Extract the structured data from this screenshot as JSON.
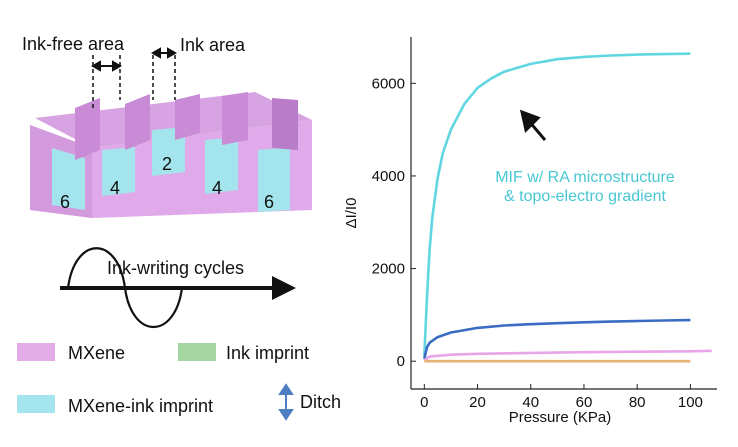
{
  "schematic": {
    "ink_free_area_label": "Ink-free area",
    "ink_area_label": "Ink area",
    "cycle_numbers": [
      "6",
      "4",
      "2",
      "4",
      "6"
    ],
    "cycles_label": "Ink-writing cycles"
  },
  "legend": {
    "mxene_label": "MXene",
    "ink_imprint_label": "Ink imprint",
    "mxene_ink_label": "MXene-ink imprint",
    "ditch_label": "Ditch",
    "colors": {
      "mxene": "#e3aee8",
      "ink_imprint": "#a6d6a2",
      "mxene_ink": "#a4e4ec",
      "ditch_arrow": "#4d7fc2"
    }
  },
  "chart_data": {
    "type": "line",
    "xlabel": "Pressure (KPa)",
    "ylabel": "ΔI/I0",
    "xlim": [
      -5,
      110
    ],
    "ylim": [
      -600,
      7000
    ],
    "xticks": [
      0,
      20,
      40,
      60,
      80,
      100
    ],
    "yticks": [
      0,
      2000,
      4000,
      6000
    ],
    "grid": false,
    "annotation": [
      "MIF w/ RA microstructure",
      "& topo-electro gradient"
    ],
    "series": [
      {
        "color": "#5fd6e0",
        "x": [
          0,
          1,
          2,
          3,
          5,
          7,
          10,
          15,
          20,
          25,
          30,
          40,
          50,
          60,
          70,
          80,
          90,
          100
        ],
        "y": [
          100,
          1400,
          2400,
          3100,
          3950,
          4500,
          5000,
          5550,
          5900,
          6100,
          6250,
          6420,
          6520,
          6570,
          6600,
          6620,
          6630,
          6640
        ]
      },
      {
        "color": "#3a6cc4",
        "x": [
          0,
          1,
          2,
          5,
          10,
          20,
          30,
          40,
          50,
          60,
          70,
          80,
          90,
          100
        ],
        "y": [
          50,
          300,
          400,
          520,
          620,
          720,
          770,
          800,
          820,
          840,
          855,
          868,
          878,
          888
        ]
      },
      {
        "color": "#e8a6e8",
        "x": [
          0,
          2,
          10,
          20,
          40,
          60,
          80,
          100,
          108
        ],
        "y": [
          20,
          100,
          140,
          160,
          180,
          195,
          205,
          215,
          225
        ]
      },
      {
        "color": "#e6b377",
        "x": [
          0,
          20,
          40,
          60,
          80,
          100
        ],
        "y": [
          0,
          0,
          0,
          0,
          0,
          0
        ]
      }
    ]
  }
}
